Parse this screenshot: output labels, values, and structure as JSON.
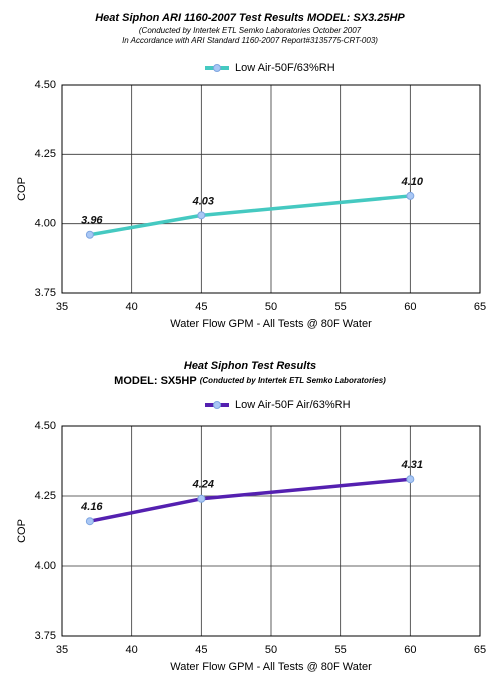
{
  "chart_data": [
    {
      "type": "line",
      "title": "Heat Siphon ARI 1160-2007 Test Results MODEL: SX3.25HP",
      "subtitle": [
        "(Conducted by Intertek ETL Semko Laboratories October 2007",
        "In Accordance with ARI Standard 1160-2007 Report#3135775-CRT-003)"
      ],
      "x": [
        37,
        45,
        60
      ],
      "series": [
        {
          "name": "Low Air-50F/63%RH",
          "color": "#45c9c1",
          "values": [
            3.96,
            4.03,
            4.1
          ],
          "value_labels": [
            "3.96",
            "4.03",
            "4.10"
          ]
        }
      ],
      "xlim": [
        35,
        65
      ],
      "xticks": [
        35,
        40,
        45,
        50,
        55,
        60,
        65
      ],
      "ylim": [
        3.75,
        4.5
      ],
      "yticks": [
        3.75,
        {
          "value": 4,
          "label": "4.00"
        },
        4.25,
        {
          "value": 4.5,
          "label": "4.50"
        }
      ],
      "xlabel": "Water Flow GPM - All Tests @ 80F Water",
      "ylabel": "COP",
      "grid": true
    },
    {
      "type": "line",
      "title": "Heat Siphon Test Results",
      "model": "MODEL: SX5HP",
      "note": "(Conducted by Intertek ETL Semko Laboratories)",
      "x": [
        37,
        45,
        60
      ],
      "series": [
        {
          "name": "Low Air-50F Air/63%RH",
          "color": "#5420b0",
          "values": [
            4.16,
            4.24,
            4.31
          ]
        }
      ],
      "xlim": [
        35,
        65
      ],
      "xticks": [
        35,
        40,
        45,
        50,
        55,
        60,
        65
      ],
      "ylim": [
        3.75,
        4.5
      ],
      "yticks": [
        3.75,
        {
          "value": 4,
          "label": "4.00"
        },
        4.25,
        {
          "value": 4.5,
          "label": "4.50"
        }
      ],
      "xlabel": "Water Flow GPM - All Tests @ 80F Water",
      "ylabel": "COP",
      "grid": true
    }
  ]
}
